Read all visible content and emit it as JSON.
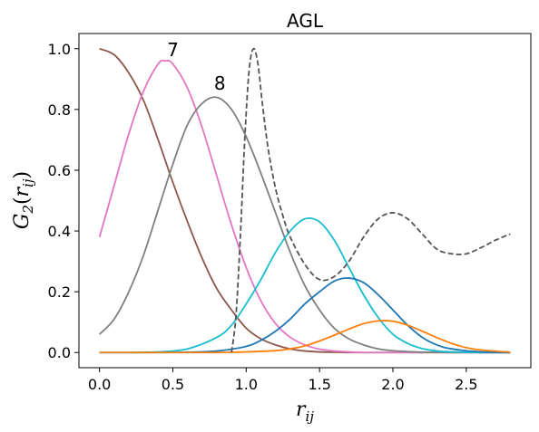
{
  "chart_data": {
    "type": "line",
    "title": "AGL",
    "xlabel_main": "r",
    "xlabel_sub": "ij",
    "ylabel_main": "G",
    "ylabel_sub": "2",
    "ylabel_arg_main": "r",
    "ylabel_arg_sub": "ij",
    "xlim": [
      -0.14,
      2.94
    ],
    "ylim": [
      -0.05,
      1.05
    ],
    "x_ticks": [
      0.0,
      0.5,
      1.0,
      1.5,
      2.0,
      2.5
    ],
    "x_tick_labels": [
      "0.0",
      "0.5",
      "1.0",
      "1.5",
      "2.0",
      "2.5"
    ],
    "y_ticks": [
      0.0,
      0.2,
      0.4,
      0.6,
      0.8,
      1.0
    ],
    "y_tick_labels": [
      "0.0",
      "0.2",
      "0.4",
      "0.6",
      "0.8",
      "1.0"
    ],
    "grid": false,
    "series": [
      {
        "color": "#8c564b",
        "style": "solid",
        "x": [
          0.0,
          0.1,
          0.2,
          0.3,
          0.4,
          0.5,
          0.6,
          0.7,
          0.8,
          0.9,
          1.0,
          1.1,
          1.2,
          1.3,
          1.4,
          1.5,
          1.6,
          1.7,
          1.8,
          1.9,
          2.0,
          2.2,
          2.4,
          2.6,
          2.8
        ],
        "y": [
          1.0,
          0.98,
          0.92,
          0.83,
          0.7,
          0.56,
          0.43,
          0.31,
          0.21,
          0.14,
          0.08,
          0.045,
          0.025,
          0.012,
          0.005,
          0.002,
          0.001,
          0.0,
          0.0,
          0.0,
          0.0,
          0.0,
          0.0,
          0.0,
          0.0
        ]
      },
      {
        "color": "#e377c2",
        "style": "solid",
        "x": [
          0.0,
          0.1,
          0.2,
          0.3,
          0.4,
          0.45,
          0.5,
          0.6,
          0.7,
          0.8,
          0.9,
          1.0,
          1.1,
          1.2,
          1.3,
          1.4,
          1.5,
          1.6,
          1.7,
          1.8,
          1.9,
          2.0,
          2.2,
          2.4,
          2.6,
          2.8
        ],
        "y": [
          0.38,
          0.55,
          0.72,
          0.86,
          0.95,
          0.96,
          0.95,
          0.87,
          0.74,
          0.58,
          0.42,
          0.28,
          0.17,
          0.095,
          0.05,
          0.025,
          0.011,
          0.005,
          0.002,
          0.0,
          0.0,
          0.0,
          0.0,
          0.0,
          0.0,
          0.0
        ]
      },
      {
        "color": "#7f7f7f",
        "style": "solid",
        "x": [
          0.0,
          0.1,
          0.2,
          0.3,
          0.4,
          0.5,
          0.6,
          0.7,
          0.8,
          0.9,
          1.0,
          1.1,
          1.2,
          1.3,
          1.4,
          1.5,
          1.6,
          1.7,
          1.8,
          1.9,
          2.0,
          2.1,
          2.2,
          2.4,
          2.6,
          2.8
        ],
        "y": [
          0.06,
          0.11,
          0.2,
          0.32,
          0.47,
          0.62,
          0.75,
          0.82,
          0.84,
          0.8,
          0.71,
          0.59,
          0.46,
          0.33,
          0.22,
          0.14,
          0.08,
          0.045,
          0.025,
          0.012,
          0.006,
          0.003,
          0.001,
          0.0,
          0.0,
          0.0
        ]
      },
      {
        "color": "#17becf",
        "style": "solid",
        "x": [
          0.0,
          0.2,
          0.4,
          0.6,
          0.8,
          0.9,
          1.0,
          1.1,
          1.2,
          1.3,
          1.4,
          1.5,
          1.6,
          1.7,
          1.8,
          1.9,
          2.0,
          2.1,
          2.2,
          2.3,
          2.4,
          2.6,
          2.8
        ],
        "y": [
          0.0,
          0.0,
          0.002,
          0.012,
          0.05,
          0.09,
          0.16,
          0.24,
          0.33,
          0.4,
          0.44,
          0.43,
          0.37,
          0.28,
          0.19,
          0.115,
          0.06,
          0.03,
          0.013,
          0.005,
          0.002,
          0.0,
          0.0
        ]
      },
      {
        "color": "#1f77b4",
        "style": "solid",
        "x": [
          0.0,
          0.4,
          0.6,
          0.8,
          1.0,
          1.1,
          1.2,
          1.3,
          1.4,
          1.5,
          1.6,
          1.7,
          1.8,
          1.9,
          2.0,
          2.1,
          2.2,
          2.3,
          2.4,
          2.6,
          2.8
        ],
        "y": [
          0.0,
          0.0,
          0.001,
          0.005,
          0.02,
          0.04,
          0.07,
          0.11,
          0.16,
          0.2,
          0.235,
          0.245,
          0.23,
          0.19,
          0.14,
          0.09,
          0.05,
          0.025,
          0.012,
          0.002,
          0.0
        ]
      },
      {
        "color": "#ff7f0e",
        "style": "solid",
        "x": [
          0.0,
          0.6,
          0.8,
          1.0,
          1.2,
          1.3,
          1.4,
          1.5,
          1.6,
          1.7,
          1.8,
          1.9,
          2.0,
          2.1,
          2.2,
          2.3,
          2.4,
          2.5,
          2.6,
          2.8
        ],
        "y": [
          0.0,
          0.0,
          0.0,
          0.002,
          0.006,
          0.012,
          0.022,
          0.038,
          0.057,
          0.077,
          0.095,
          0.104,
          0.103,
          0.09,
          0.07,
          0.049,
          0.03,
          0.016,
          0.008,
          0.001
        ]
      },
      {
        "color": "#555555",
        "style": "dashed",
        "x": [
          0.9,
          0.93,
          0.96,
          0.99,
          1.02,
          1.05,
          1.08,
          1.11,
          1.15,
          1.2,
          1.25,
          1.3,
          1.4,
          1.5,
          1.6,
          1.7,
          1.8,
          1.9,
          2.0,
          2.1,
          2.2,
          2.3,
          2.4,
          2.5,
          2.6,
          2.7,
          2.8
        ],
        "y": [
          0.0,
          0.12,
          0.38,
          0.7,
          0.93,
          1.0,
          0.95,
          0.82,
          0.67,
          0.54,
          0.45,
          0.38,
          0.29,
          0.24,
          0.25,
          0.3,
          0.38,
          0.44,
          0.46,
          0.44,
          0.39,
          0.34,
          0.325,
          0.325,
          0.345,
          0.37,
          0.39
        ]
      }
    ],
    "annotations": [
      {
        "text": "7",
        "x": 0.5,
        "y": 0.975
      },
      {
        "text": "8",
        "x": 0.82,
        "y": 0.865
      }
    ]
  }
}
